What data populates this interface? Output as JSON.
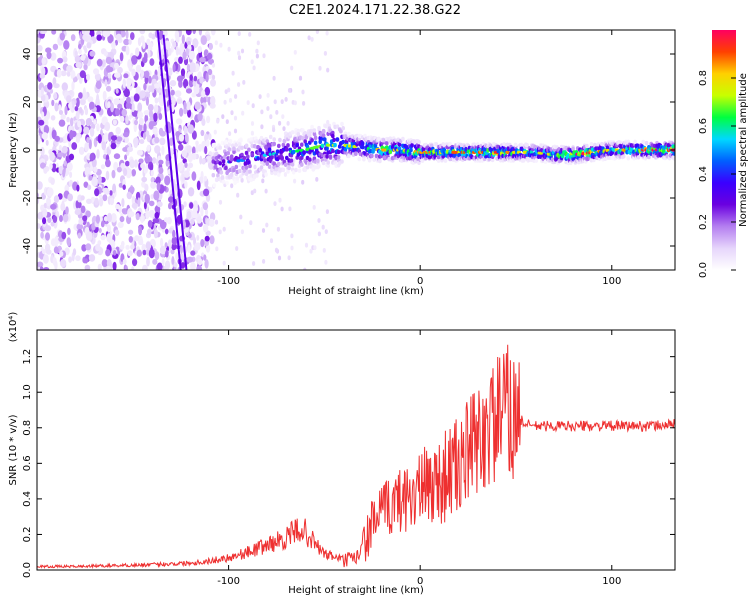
{
  "title": "C2E1.2024.171.22.38.G22",
  "chart_data": [
    {
      "type": "heatmap",
      "xlabel": "Height of straight line (km)",
      "ylabel": "Frequency (Hz)",
      "xlim": [
        -200,
        133
      ],
      "ylim": [
        -50,
        50
      ],
      "xticks": [
        -100,
        0,
        100
      ],
      "yticks": [
        -40,
        -20,
        0,
        20,
        40
      ],
      "colorbar": {
        "label": "Normalized spectral amplitude",
        "range": [
          0,
          1
        ],
        "ticks": [
          0.0,
          0.2,
          0.4,
          0.6,
          0.8
        ],
        "colormap": [
          "#ffffff",
          "#e6d5fb",
          "#b47ef0",
          "#6a00e0",
          "#3a00ff",
          "#0060ff",
          "#00d8ff",
          "#00ff40",
          "#c8ff00",
          "#ffd000",
          "#ff4000",
          "#ff0060"
        ]
      },
      "ridge": {
        "x": [
          -108,
          -100,
          -90,
          -80,
          -70,
          -60,
          -50,
          -40,
          -30,
          -20,
          -10,
          0,
          10,
          20,
          30,
          40,
          50,
          60,
          70,
          80,
          90,
          100,
          110,
          120,
          133
        ],
        "frequency": [
          -6,
          -5,
          -4,
          -2,
          -1,
          0,
          2,
          2,
          1,
          0,
          0,
          -1,
          -1,
          -1,
          -1,
          -1,
          -1,
          -1,
          -2,
          -2,
          -1,
          0,
          0,
          0,
          0
        ],
        "amplitude": [
          0.25,
          0.3,
          0.35,
          0.4,
          0.45,
          0.5,
          0.55,
          0.6,
          0.6,
          0.7,
          0.65,
          0.7,
          0.75,
          0.75,
          0.75,
          0.8,
          0.65,
          0.6,
          0.65,
          0.85,
          0.8,
          0.6,
          0.75,
          0.85,
          0.9
        ]
      },
      "noise_region_x": [
        -200,
        -108
      ]
    },
    {
      "type": "line",
      "xlabel": "Height of straight line (km)",
      "ylabel": "SNR (10 * v/v)",
      "yscale_label": "(x10⁴)",
      "xlim": [
        -200,
        133
      ],
      "ylim": [
        0,
        1.35
      ],
      "xticks": [
        -100,
        0,
        100
      ],
      "yticks": [
        0.0,
        0.2,
        0.4,
        0.6,
        0.8,
        1.0,
        1.2
      ],
      "series": [
        {
          "color": "#ee3030",
          "x": [
            -200,
            -180,
            -160,
            -140,
            -120,
            -110,
            -100,
            -90,
            -80,
            -70,
            -62,
            -55,
            -50,
            -40,
            -35,
            -30,
            -25,
            -20,
            -15,
            -10,
            -5,
            0,
            5,
            10,
            15,
            20,
            25,
            30,
            35,
            40,
            45,
            50,
            55,
            60,
            70,
            80,
            90,
            100,
            110,
            120,
            133
          ],
          "y": [
            0.02,
            0.02,
            0.025,
            0.03,
            0.04,
            0.05,
            0.07,
            0.1,
            0.14,
            0.18,
            0.24,
            0.15,
            0.09,
            0.06,
            0.05,
            0.12,
            0.26,
            0.33,
            0.36,
            0.4,
            0.42,
            0.45,
            0.48,
            0.5,
            0.55,
            0.58,
            0.66,
            0.72,
            0.78,
            0.85,
            0.9,
            0.87,
            0.82,
            0.81,
            0.81,
            0.81,
            0.81,
            0.81,
            0.81,
            0.81,
            0.82
          ]
        }
      ]
    }
  ]
}
